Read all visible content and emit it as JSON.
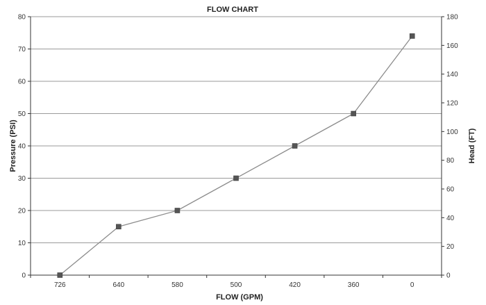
{
  "chart_data": {
    "type": "line",
    "title": "FLOW CHART",
    "xlabel": "FLOW (GPM)",
    "ylabel": "Pressure (PSI)",
    "y2label": "Head (FT)",
    "categories": [
      "726",
      "640",
      "580",
      "500",
      "420",
      "360",
      "0"
    ],
    "series": [
      {
        "values": [
          0,
          15,
          20,
          30,
          40,
          50,
          74
        ]
      }
    ],
    "ylim": [
      0,
      80
    ],
    "yticks": [
      "0",
      "10",
      "20",
      "30",
      "40",
      "50",
      "60",
      "70",
      "80"
    ],
    "y2lim": [
      0,
      180
    ],
    "y2ticks": [
      "0",
      "20",
      "40",
      "60",
      "80",
      "100",
      "120",
      "140",
      "160",
      "180"
    ],
    "grid": true,
    "legend": "none",
    "colors": {
      "line": "#8c8c8c",
      "marker": "#555555",
      "grid": "#9a9a9a",
      "axis": "#333333"
    }
  }
}
